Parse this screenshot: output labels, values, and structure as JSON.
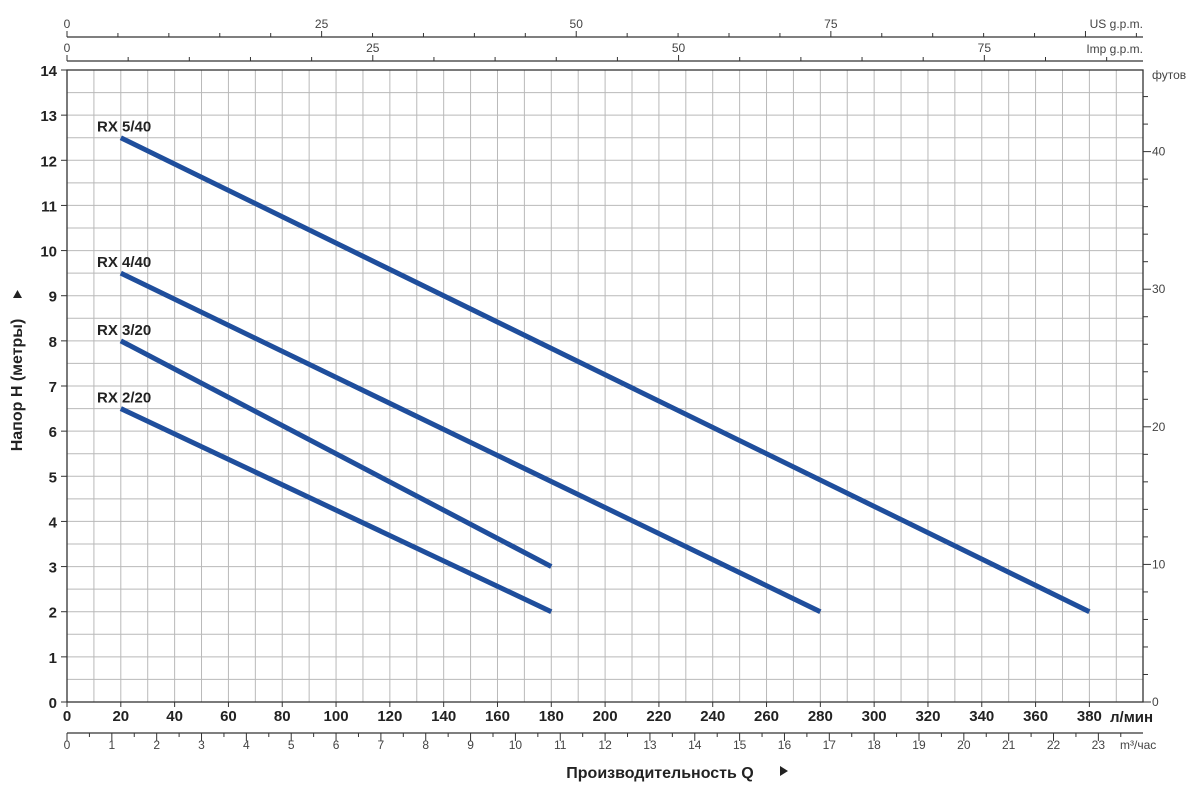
{
  "chart_data": {
    "type": "line",
    "xlabel": "Производительность Q",
    "ylabel": "Напор H (метры)",
    "x_unit": "л/мин",
    "x_secondary_unit": "m³/час",
    "y_secondary_unit": "футов",
    "top_axis_1_unit": "US g.p.m.",
    "top_axis_2_unit": "Imp g.p.m.",
    "xlim": [
      0,
      395
    ],
    "ylim": [
      0,
      14
    ],
    "x_ticks": [
      0,
      20,
      40,
      60,
      80,
      100,
      120,
      140,
      160,
      180,
      200,
      220,
      240,
      260,
      280,
      300,
      320,
      340,
      360,
      380
    ],
    "y_ticks": [
      0,
      1,
      2,
      3,
      4,
      5,
      6,
      7,
      8,
      9,
      10,
      11,
      12,
      13,
      14
    ],
    "m3h_ticks": [
      0,
      1,
      2,
      3,
      4,
      5,
      6,
      7,
      8,
      9,
      10,
      11,
      12,
      13,
      14,
      15,
      16,
      17,
      18,
      19,
      20,
      21,
      22,
      23
    ],
    "feet_ticks": [
      0,
      10,
      20,
      30,
      40
    ],
    "us_gpm_ticks": [
      0,
      25,
      50,
      75
    ],
    "imp_gpm_ticks": [
      0,
      25,
      50,
      75
    ],
    "series": [
      {
        "name": "RX 5/40",
        "x": [
          20,
          380
        ],
        "y": [
          12.5,
          2
        ]
      },
      {
        "name": "RX 4/40",
        "x": [
          20,
          280
        ],
        "y": [
          9.5,
          2
        ]
      },
      {
        "name": "RX 3/20",
        "x": [
          20,
          180
        ],
        "y": [
          8,
          3
        ]
      },
      {
        "name": "RX 2/20",
        "x": [
          20,
          180
        ],
        "y": [
          6.5,
          2
        ]
      }
    ],
    "line_color": "#1f4e9c",
    "grid": true
  }
}
